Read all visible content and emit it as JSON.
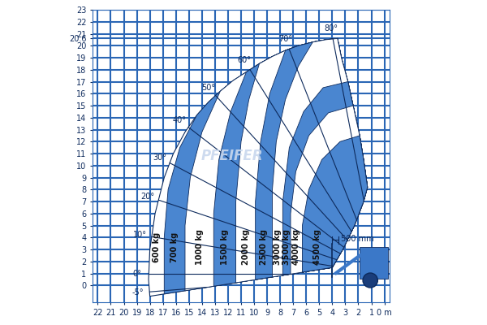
{
  "chart_data": {
    "type": "load_chart",
    "xlim": [
      22.4,
      -0.4
    ],
    "ylim": [
      -1.4,
      23
    ],
    "xticks": [
      22,
      21,
      20,
      19,
      18,
      17,
      16,
      15,
      14,
      13,
      12,
      11,
      10,
      9,
      8,
      7,
      6,
      5,
      4,
      3,
      2,
      1,
      {
        "value": 0,
        "label": "0 m"
      }
    ],
    "yticks": [
      0,
      1,
      2,
      3,
      4,
      5,
      6,
      7,
      8,
      9,
      10,
      11,
      12,
      13,
      14,
      15,
      16,
      17,
      18,
      19,
      20,
      20.6,
      21,
      22,
      23
    ],
    "grid": true,
    "color": "#2a66b5",
    "envelope": [
      [
        18,
        -0.9
      ],
      [
        18.1,
        0.5
      ],
      [
        18,
        3
      ],
      [
        17.6,
        6
      ],
      [
        16.9,
        9
      ],
      [
        16.2,
        11
      ],
      [
        15.3,
        12.8
      ],
      [
        14.4,
        14.2
      ],
      [
        13.5,
        15.3
      ],
      [
        12.6,
        16.2
      ],
      [
        11.6,
        17.1
      ],
      [
        10.6,
        17.8
      ],
      [
        9.6,
        18.5
      ],
      [
        8.6,
        19.1
      ],
      [
        7.6,
        19.6
      ],
      [
        6.6,
        20
      ],
      [
        5.5,
        20.3
      ],
      [
        4.5,
        20.5
      ],
      [
        3.6,
        20.6
      ],
      [
        3.3,
        19
      ],
      [
        2.8,
        17
      ],
      [
        2.4,
        15
      ],
      [
        2.2,
        14
      ],
      [
        1.9,
        12.5
      ],
      [
        1.6,
        10.5
      ],
      [
        1.3,
        8.2
      ],
      [
        1.6,
        7
      ],
      [
        2.3,
        5
      ],
      [
        3.2,
        3
      ],
      [
        4,
        1.5
      ]
    ],
    "zones": [
      {
        "name": "600 kg",
        "color": "#ffffff"
      },
      {
        "name": "700 kg",
        "color": "#4a86d0",
        "outer": [
          [
            16.9,
            -0.71
          ],
          [
            16.9,
            4
          ],
          [
            16.6,
            8
          ],
          [
            15.7,
            11.5
          ],
          [
            14.4,
            14.2
          ]
        ]
      },
      {
        "name": "1000 kg",
        "color": "#ffffff",
        "outer": [
          [
            15.3,
            -0.44
          ],
          [
            15.3,
            5
          ],
          [
            14.9,
            9
          ],
          [
            14,
            12.8
          ],
          [
            12.6,
            16.2
          ]
        ]
      },
      {
        "name": "1500 kg",
        "color": "#4a86d0",
        "outer": [
          [
            13.1,
            -0.06
          ],
          [
            13.1,
            6
          ],
          [
            12.7,
            10.5
          ],
          [
            11.8,
            14.5
          ],
          [
            10.6,
            17.8
          ]
        ]
      },
      {
        "name": "2000 kg",
        "color": "#ffffff",
        "outer": [
          [
            11.4,
            0.23
          ],
          [
            11.4,
            7
          ],
          [
            11,
            12
          ],
          [
            10.4,
            15.5
          ],
          [
            9.6,
            18.5
          ]
        ]
      },
      {
        "name": "2500 kg",
        "color": "#4a86d0",
        "outer": [
          [
            9.9,
            0.49
          ],
          [
            9.9,
            7
          ],
          [
            9.5,
            12
          ],
          [
            8.8,
            16
          ],
          [
            7.6,
            19.6
          ]
        ]
      },
      {
        "name": "3000 kg",
        "color": "#ffffff",
        "outer": [
          [
            8.6,
            0.71
          ],
          [
            8.6,
            8
          ],
          [
            8.3,
            12
          ],
          [
            7.6,
            15.5
          ],
          [
            6.6,
            18.3
          ],
          [
            5.5,
            20.3
          ]
        ]
      },
      {
        "name": "3500 kg",
        "color": "#4a86d0",
        "outer": [
          [
            7.8,
            0.85
          ],
          [
            7.8,
            7
          ],
          [
            7.3,
            11.5
          ],
          [
            6.2,
            14.5
          ],
          [
            4.7,
            16.5
          ],
          [
            2.8,
            17
          ]
        ]
      },
      {
        "name": "4000 kg",
        "color": "#ffffff",
        "outer": [
          [
            7.2,
            0.95
          ],
          [
            7.2,
            6
          ],
          [
            6.8,
            9.5
          ],
          [
            5.8,
            12.5
          ],
          [
            4.3,
            14.4
          ],
          [
            2.4,
            15
          ]
        ]
      },
      {
        "name": "4500 kg",
        "color": "#4a86d0",
        "outer": [
          [
            6.3,
            1.11
          ],
          [
            6.3,
            5
          ],
          [
            5.8,
            8
          ],
          [
            4.8,
            10.5
          ],
          [
            3.4,
            12
          ],
          [
            1.9,
            12.5
          ]
        ]
      }
    ],
    "angle_origin": [
      0.5,
      1.0
    ],
    "angles": [
      {
        "value": -5,
        "label": "-5°"
      },
      {
        "value": 0,
        "label": "0°"
      },
      {
        "value": 10,
        "label": "10°"
      },
      {
        "value": 20,
        "label": "20°"
      },
      {
        "value": 30,
        "label": "30°"
      },
      {
        "value": 40,
        "label": "40°"
      },
      {
        "value": 50,
        "label": "50°"
      },
      {
        "value": 60,
        "label": "60°"
      },
      {
        "value": 70,
        "label": "70°"
      },
      {
        "value": 80,
        "label": "80°"
      }
    ],
    "dimension": {
      "label": "500 mm",
      "x": [
        4.0,
        3.5
      ],
      "y": 3.8
    },
    "annotations": [
      "PFEIFER"
    ]
  }
}
